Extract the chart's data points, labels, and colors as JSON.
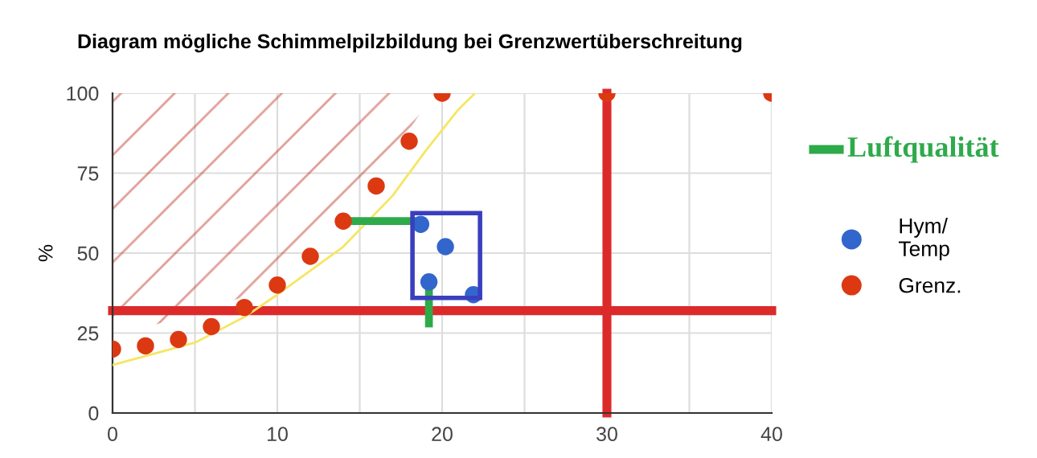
{
  "chart_data": {
    "type": "scatter",
    "title": "Diagram mögliche Schimmelpilzbildung bei Grenzwertüberschreitung",
    "ylabel": "%",
    "xlim": [
      0,
      40
    ],
    "ylim": [
      0,
      100
    ],
    "xticks": [
      0,
      {
        "value": 5,
        "label": null
      },
      10,
      {
        "value": 15,
        "label": null
      },
      20,
      {
        "value": 25,
        "label": null
      },
      30,
      {
        "value": 35,
        "label": null
      },
      40
    ],
    "yticks": [
      0,
      25,
      50,
      75,
      100
    ],
    "grid": true,
    "legend": "right",
    "marker": "circle",
    "series": [
      {
        "name": "Hym/\nTemp",
        "color": "#3366cc",
        "x": [
          18.7,
          20.2,
          19.2,
          21.9
        ],
        "values": [
          59,
          52,
          41,
          37
        ]
      },
      {
        "name": "Grenz.",
        "color": "#dc3912",
        "x": [
          0,
          2,
          4,
          6,
          8,
          10,
          12,
          14,
          16,
          18,
          20,
          30,
          40
        ],
        "values": [
          20,
          21,
          23,
          27,
          33,
          40,
          49,
          60,
          71,
          85,
          100,
          100,
          100
        ]
      },
      {
        "type": "line",
        "marker": "none",
        "color": "#f5e663",
        "x": [
          0,
          5,
          8,
          10,
          14,
          17,
          19,
          21,
          22
        ],
        "values": [
          15,
          22,
          30,
          37,
          52,
          68,
          82,
          95,
          100
        ]
      },
      {
        "type": "line",
        "marker": "none",
        "name": "Luftqualität",
        "color": "#2eaa4a",
        "x": [
          14,
          18.7
        ],
        "values": [
          60,
          60
        ]
      },
      {
        "type": "line",
        "marker": "none",
        "color": "#2eaa4a",
        "x": [
          19.2,
          19.2
        ],
        "values": [
          41,
          28
        ]
      }
    ],
    "ref_lines": [
      {
        "axis": "y",
        "value": 32,
        "color": "#dc2a2a"
      },
      {
        "axis": "x",
        "value": 30,
        "color": "#dc2a2a"
      }
    ]
  }
}
